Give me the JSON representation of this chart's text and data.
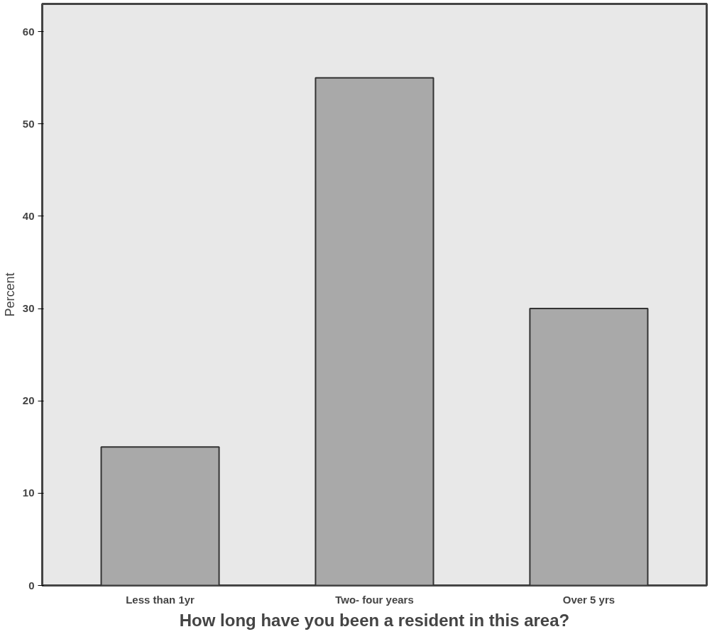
{
  "chart_data": {
    "type": "bar",
    "xlabel": "How long have you been a resident in this area?",
    "ylabel": "Percent",
    "categories": [
      "Less than 1yr",
      "Two- four years",
      "Over 5 yrs"
    ],
    "values": [
      15,
      55,
      30
    ],
    "color": "#a9a9a9",
    "ylim": [
      0,
      63
    ],
    "yticks": [
      0,
      10,
      20,
      30,
      40,
      50,
      60
    ],
    "grid": false
  }
}
